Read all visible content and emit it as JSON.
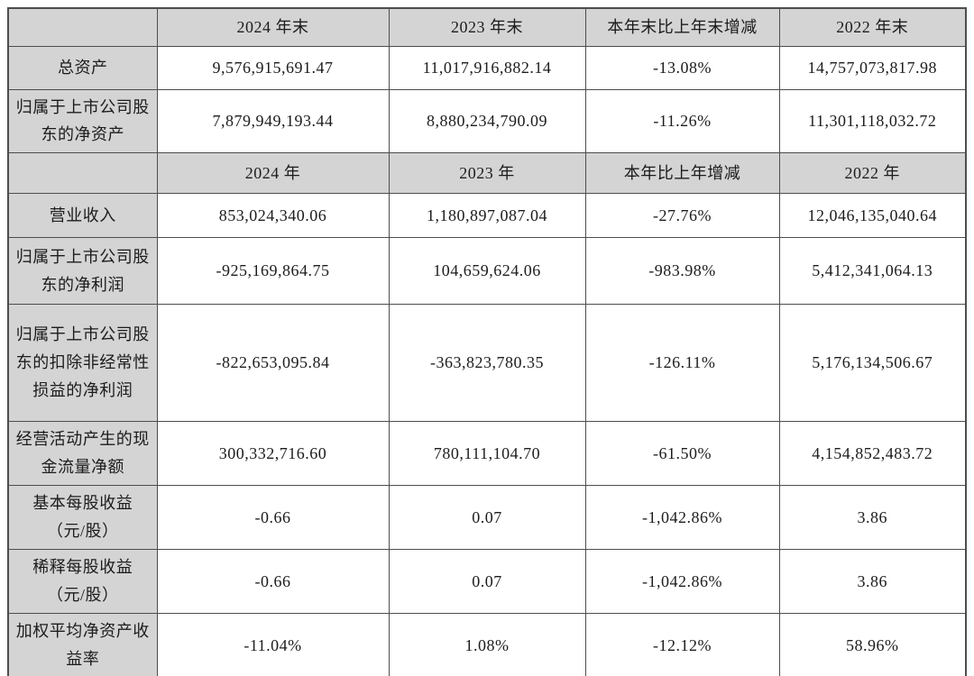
{
  "colors": {
    "header_bg": "#d4d4d4",
    "label_bg": "#d4d4d4",
    "border": "#4d4d4d",
    "text": "#1c1c1c"
  },
  "table": {
    "headers_period_end": {
      "c0": "",
      "c2024": "2024 年末",
      "c2023": "2023 年末",
      "cchange": "本年末比上年末增减",
      "c2022": "2022 年末"
    },
    "headers_period": {
      "c0": "",
      "c2024": "2024 年",
      "c2023": "2023 年",
      "cchange": "本年比上年增减",
      "c2022": "2022 年"
    },
    "rows_period_end": [
      {
        "label": "总资产",
        "y2024": "9,576,915,691.47",
        "y2023": "11,017,916,882.14",
        "change": "-13.08%",
        "y2022": "14,757,073,817.98"
      },
      {
        "label": "归属于上市公司股东的净资产",
        "y2024": "7,879,949,193.44",
        "y2023": "8,880,234,790.09",
        "change": "-11.26%",
        "y2022": "11,301,118,032.72"
      }
    ],
    "rows_period": [
      {
        "label": "营业收入",
        "y2024": "853,024,340.06",
        "y2023": "1,180,897,087.04",
        "change": "-27.76%",
        "y2022": "12,046,135,040.64"
      },
      {
        "label": "归属于上市公司股东的净利润",
        "y2024": "-925,169,864.75",
        "y2023": "104,659,624.06",
        "change": "-983.98%",
        "y2022": "5,412,341,064.13"
      },
      {
        "label": "归属于上市公司股东的扣除非经常性损益的净利润",
        "y2024": "-822,653,095.84",
        "y2023": "-363,823,780.35",
        "change": "-126.11%",
        "y2022": "5,176,134,506.67"
      },
      {
        "label": "经营活动产生的现金流量净额",
        "y2024": "300,332,716.60",
        "y2023": "780,111,104.70",
        "change": "-61.50%",
        "y2022": "4,154,852,483.72"
      },
      {
        "label": "基本每股收益（元/股）",
        "y2024": "-0.66",
        "y2023": "0.07",
        "change": "-1,042.86%",
        "y2022": "3.86"
      },
      {
        "label": "稀释每股收益（元/股）",
        "y2024": "-0.66",
        "y2023": "0.07",
        "change": "-1,042.86%",
        "y2022": "3.86"
      },
      {
        "label": "加权平均净资产收益率",
        "y2024": "-11.04%",
        "y2023": "1.08%",
        "change": "-12.12%",
        "y2022": "58.96%"
      }
    ]
  }
}
